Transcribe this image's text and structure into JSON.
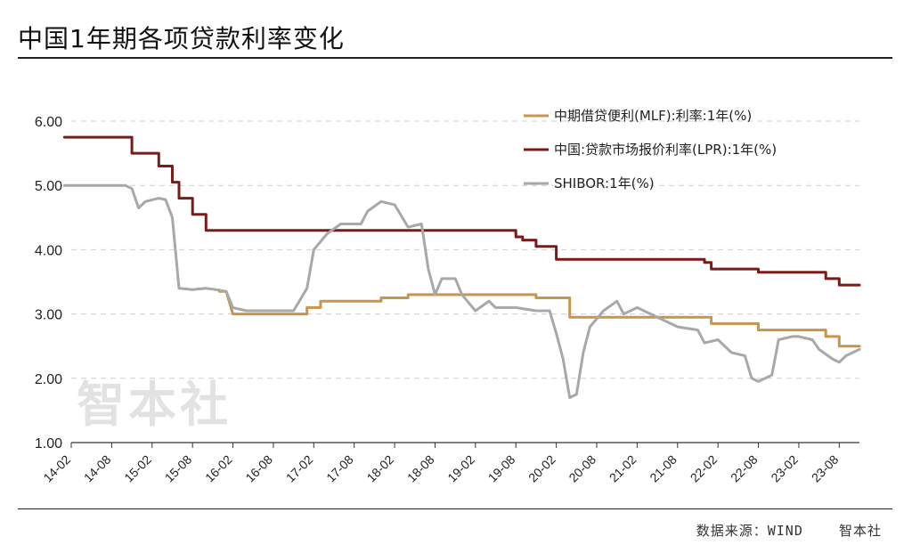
{
  "title": "中国1年期各项贷款利率变化",
  "source_label": "数据来源：WIND",
  "source_brand": "智本社",
  "watermark": "智本社",
  "chart_data": {
    "type": "line",
    "title": "",
    "xlabel": "",
    "ylabel": "",
    "ylim": [
      1.0,
      6.0
    ],
    "yticks": [
      "1.00",
      "2.00",
      "3.00",
      "4.00",
      "5.00",
      "6.00"
    ],
    "xticks": [
      "14-02",
      "14-08",
      "15-02",
      "15-08",
      "16-02",
      "16-08",
      "17-02",
      "17-08",
      "18-02",
      "18-08",
      "19-02",
      "19-08",
      "20-02",
      "20-08",
      "21-02",
      "21-08",
      "22-02",
      "22-08",
      "23-02",
      "23-08"
    ],
    "grid": "horizontal dashed",
    "legend_position": "top-right",
    "series": [
      {
        "name": "中期借贷便利(MLF):利率:1年(%)",
        "color": "#c8954f",
        "points": [
          [
            "15-12",
            3.35
          ],
          [
            "16-01",
            3.35
          ],
          [
            "16-02",
            3.0
          ],
          [
            "16-08",
            3.0
          ],
          [
            "17-01",
            3.0
          ],
          [
            "17-01",
            3.1
          ],
          [
            "17-03",
            3.1
          ],
          [
            "17-03",
            3.2
          ],
          [
            "17-12",
            3.2
          ],
          [
            "17-12",
            3.25
          ],
          [
            "18-04",
            3.25
          ],
          [
            "18-04",
            3.3
          ],
          [
            "19-11",
            3.3
          ],
          [
            "19-11",
            3.25
          ],
          [
            "20-04",
            3.25
          ],
          [
            "20-04",
            2.95
          ],
          [
            "22-01",
            2.95
          ],
          [
            "22-01",
            2.85
          ],
          [
            "22-08",
            2.85
          ],
          [
            "22-08",
            2.75
          ],
          [
            "23-06",
            2.75
          ],
          [
            "23-06",
            2.65
          ],
          [
            "23-08",
            2.65
          ],
          [
            "23-08",
            2.5
          ],
          [
            "23-11",
            2.5
          ]
        ]
      },
      {
        "name": "中国:贷款市场报价利率(LPR):1年(%)",
        "color": "#7b1a18",
        "points": [
          [
            "14-01",
            5.75
          ],
          [
            "14-11",
            5.75
          ],
          [
            "14-11",
            5.5
          ],
          [
            "15-03",
            5.5
          ],
          [
            "15-03",
            5.3
          ],
          [
            "15-05",
            5.3
          ],
          [
            "15-05",
            5.05
          ],
          [
            "15-06",
            5.05
          ],
          [
            "15-06",
            4.8
          ],
          [
            "15-08",
            4.8
          ],
          [
            "15-08",
            4.55
          ],
          [
            "15-10",
            4.55
          ],
          [
            "15-10",
            4.3
          ],
          [
            "19-08",
            4.3
          ],
          [
            "19-08",
            4.2
          ],
          [
            "19-09",
            4.2
          ],
          [
            "19-09",
            4.15
          ],
          [
            "19-11",
            4.15
          ],
          [
            "19-11",
            4.05
          ],
          [
            "20-02",
            4.05
          ],
          [
            "20-02",
            3.85
          ],
          [
            "21-12",
            3.85
          ],
          [
            "21-12",
            3.8
          ],
          [
            "22-01",
            3.8
          ],
          [
            "22-01",
            3.7
          ],
          [
            "22-08",
            3.7
          ],
          [
            "22-08",
            3.65
          ],
          [
            "23-06",
            3.65
          ],
          [
            "23-06",
            3.55
          ],
          [
            "23-08",
            3.55
          ],
          [
            "23-08",
            3.45
          ],
          [
            "23-11",
            3.45
          ]
        ]
      },
      {
        "name": "SHIBOR:1年(%)",
        "color": "#a8a8a8",
        "points": [
          [
            "14-01",
            5.0
          ],
          [
            "14-10",
            5.0
          ],
          [
            "14-11",
            4.95
          ],
          [
            "14-12",
            4.65
          ],
          [
            "15-01",
            4.75
          ],
          [
            "15-03",
            4.8
          ],
          [
            "15-04",
            4.78
          ],
          [
            "15-05",
            4.5
          ],
          [
            "15-06",
            3.4
          ],
          [
            "15-08",
            3.38
          ],
          [
            "15-10",
            3.4
          ],
          [
            "15-12",
            3.37
          ],
          [
            "16-01",
            3.35
          ],
          [
            "16-02",
            3.1
          ],
          [
            "16-04",
            3.05
          ],
          [
            "16-08",
            3.05
          ],
          [
            "16-11",
            3.05
          ],
          [
            "17-01",
            3.4
          ],
          [
            "17-02",
            4.0
          ],
          [
            "17-04",
            4.25
          ],
          [
            "17-06",
            4.4
          ],
          [
            "17-09",
            4.4
          ],
          [
            "17-10",
            4.6
          ],
          [
            "17-12",
            4.75
          ],
          [
            "18-02",
            4.7
          ],
          [
            "18-04",
            4.35
          ],
          [
            "18-06",
            4.4
          ],
          [
            "18-07",
            3.7
          ],
          [
            "18-08",
            3.3
          ],
          [
            "18-09",
            3.55
          ],
          [
            "18-11",
            3.55
          ],
          [
            "18-12",
            3.3
          ],
          [
            "19-02",
            3.05
          ],
          [
            "19-04",
            3.2
          ],
          [
            "19-05",
            3.1
          ],
          [
            "19-08",
            3.1
          ],
          [
            "19-11",
            3.05
          ],
          [
            "20-01",
            3.05
          ],
          [
            "20-02",
            2.7
          ],
          [
            "20-03",
            2.3
          ],
          [
            "20-04",
            1.7
          ],
          [
            "20-05",
            1.75
          ],
          [
            "20-06",
            2.4
          ],
          [
            "20-07",
            2.8
          ],
          [
            "20-09",
            3.05
          ],
          [
            "20-11",
            3.2
          ],
          [
            "20-12",
            3.0
          ],
          [
            "21-02",
            3.1
          ],
          [
            "21-04",
            3.0
          ],
          [
            "21-06",
            2.9
          ],
          [
            "21-08",
            2.8
          ],
          [
            "21-11",
            2.75
          ],
          [
            "21-12",
            2.55
          ],
          [
            "22-02",
            2.6
          ],
          [
            "22-04",
            2.4
          ],
          [
            "22-06",
            2.35
          ],
          [
            "22-07",
            2.0
          ],
          [
            "22-08",
            1.95
          ],
          [
            "22-10",
            2.05
          ],
          [
            "22-11",
            2.6
          ],
          [
            "23-01",
            2.65
          ],
          [
            "23-02",
            2.65
          ],
          [
            "23-04",
            2.6
          ],
          [
            "23-05",
            2.45
          ],
          [
            "23-07",
            2.3
          ],
          [
            "23-08",
            2.25
          ],
          [
            "23-09",
            2.35
          ],
          [
            "23-11",
            2.45
          ]
        ]
      }
    ]
  }
}
